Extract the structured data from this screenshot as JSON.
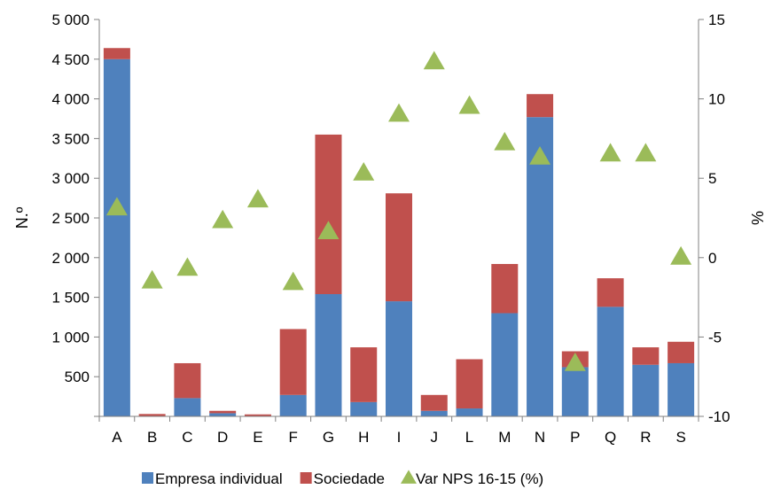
{
  "chart_data": {
    "type": "bar",
    "subtype": "stacked-bar-with-secondary-markers",
    "categories": [
      "A",
      "B",
      "C",
      "D",
      "E",
      "F",
      "G",
      "H",
      "I",
      "J",
      "L",
      "M",
      "N",
      "P",
      "Q",
      "R",
      "S"
    ],
    "series": [
      {
        "name": "Empresa individual",
        "type": "bar",
        "axis": "left",
        "color": "#4F81BD",
        "values": [
          4500,
          5,
          230,
          40,
          5,
          270,
          1540,
          180,
          1450,
          70,
          100,
          1300,
          3770,
          620,
          1380,
          650,
          670
        ]
      },
      {
        "name": "Sociedade",
        "type": "bar",
        "axis": "left",
        "color": "#C0504D",
        "values": [
          140,
          25,
          440,
          30,
          20,
          830,
          2010,
          690,
          1360,
          200,
          620,
          620,
          290,
          200,
          360,
          220,
          270
        ]
      },
      {
        "name": "Var NPS 16-15 (%)",
        "type": "scatter",
        "marker": "triangle",
        "axis": "right",
        "color": "#9BBB59",
        "values": [
          3.1,
          -1.5,
          -0.7,
          2.3,
          3.6,
          -1.6,
          1.6,
          5.3,
          9.0,
          12.3,
          9.5,
          7.2,
          6.3,
          -6.7,
          6.5,
          6.5,
          0.0
        ]
      }
    ],
    "y_left": {
      "label": "N.º",
      "ylim": [
        0,
        5000
      ],
      "ticks": [
        500,
        1000,
        1500,
        2000,
        2500,
        3000,
        3500,
        4000,
        4500,
        5000
      ],
      "tick_labels": [
        "500",
        "1 000",
        "1 500",
        "2 000",
        "2 500",
        "3 000",
        "3 500",
        "4 000",
        "4 500",
        "5 000"
      ]
    },
    "y_right": {
      "label": "%",
      "ylim": [
        -10,
        15
      ],
      "ticks": [
        -10,
        -5,
        0,
        5,
        10,
        15
      ],
      "tick_labels": [
        "-10",
        "-5",
        "0",
        "5",
        "10",
        "15"
      ]
    },
    "grid": false,
    "legend_position": "bottom"
  }
}
